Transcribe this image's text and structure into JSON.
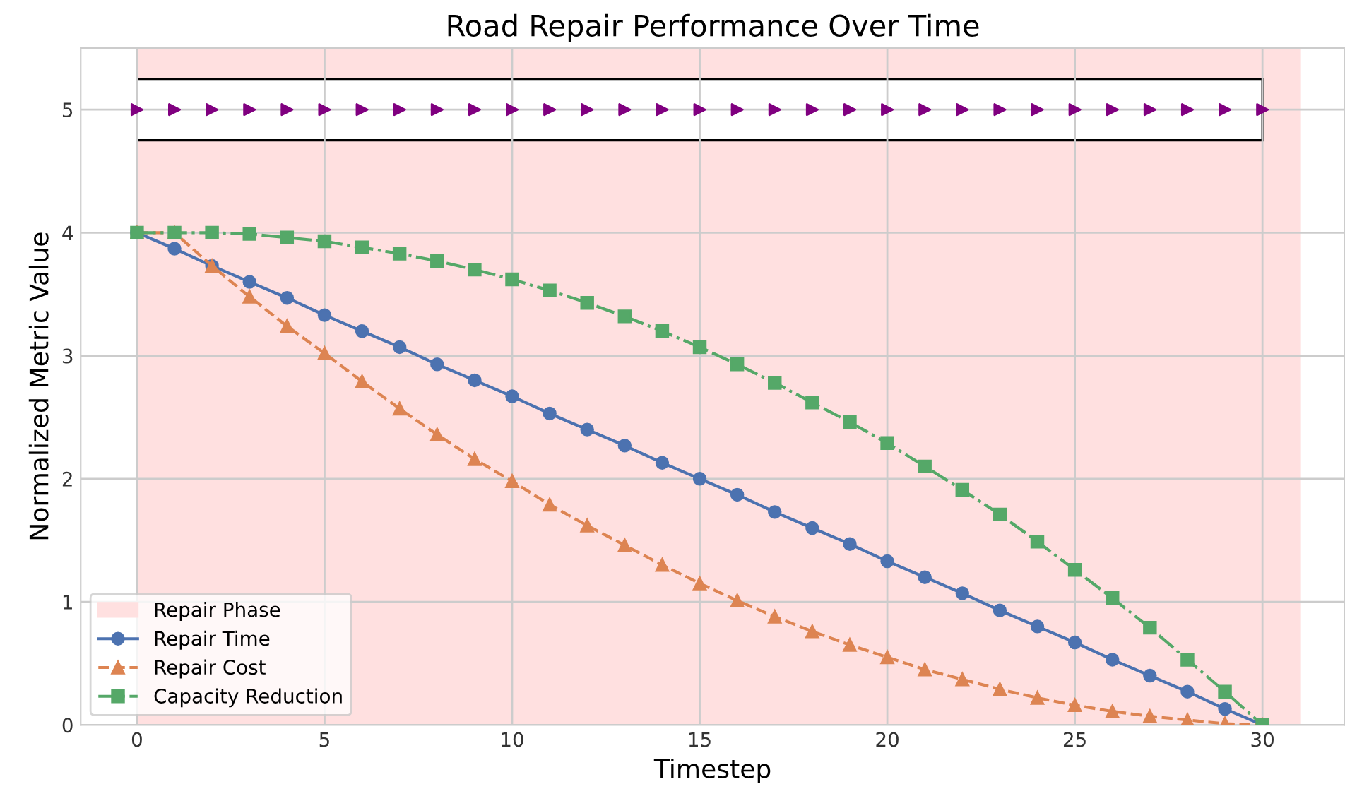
{
  "chart_data": {
    "type": "line",
    "title": "Road Repair Performance Over Time",
    "xlabel": "Timestep",
    "ylabel": "Normalized Metric Value",
    "x": [
      0,
      1,
      2,
      3,
      4,
      5,
      6,
      7,
      8,
      9,
      10,
      11,
      12,
      13,
      14,
      15,
      16,
      17,
      18,
      19,
      20,
      21,
      22,
      23,
      24,
      25,
      26,
      27,
      28,
      29,
      30
    ],
    "series": [
      {
        "name": "Repair Time",
        "color": "#4c72b0",
        "marker": "circle",
        "line_style": "solid",
        "values": [
          4.0,
          3.87,
          3.73,
          3.6,
          3.47,
          3.33,
          3.2,
          3.07,
          2.93,
          2.8,
          2.67,
          2.53,
          2.4,
          2.27,
          2.13,
          2.0,
          1.87,
          1.73,
          1.6,
          1.47,
          1.33,
          1.2,
          1.07,
          0.93,
          0.8,
          0.67,
          0.53,
          0.4,
          0.27,
          0.13,
          0.0
        ]
      },
      {
        "name": "Repair Cost",
        "color": "#dd8452",
        "marker": "triangle",
        "line_style": "dashed",
        "values": [
          4.0,
          4.0,
          3.73,
          3.48,
          3.24,
          3.02,
          2.79,
          2.57,
          2.36,
          2.16,
          1.98,
          1.79,
          1.62,
          1.46,
          1.3,
          1.15,
          1.01,
          0.88,
          0.76,
          0.65,
          0.55,
          0.45,
          0.37,
          0.29,
          0.22,
          0.16,
          0.11,
          0.07,
          0.04,
          0.01,
          0.0
        ]
      },
      {
        "name": "Capacity Reduction",
        "color": "#55a868",
        "marker": "square",
        "line_style": "dashdot",
        "values": [
          4.0,
          4.0,
          4.0,
          3.99,
          3.96,
          3.93,
          3.88,
          3.83,
          3.77,
          3.7,
          3.62,
          3.53,
          3.43,
          3.32,
          3.2,
          3.07,
          2.93,
          2.78,
          2.62,
          2.46,
          2.29,
          2.1,
          1.91,
          1.71,
          1.49,
          1.26,
          1.03,
          0.79,
          0.53,
          0.27,
          0.0
        ]
      },
      {
        "type": "scatter",
        "color": "#800080",
        "marker": "triangle-right",
        "values": [
          5,
          5,
          5,
          5,
          5,
          5,
          5,
          5,
          5,
          5,
          5,
          5,
          5,
          5,
          5,
          5,
          5,
          5,
          5,
          5,
          5,
          5,
          5,
          5,
          5,
          5,
          5,
          5,
          5,
          5,
          5
        ]
      }
    ],
    "bands": [
      {
        "axis": "x",
        "from": 0,
        "to": 31,
        "label": "Repair Phase",
        "color": "#ffe0e0"
      },
      {
        "axis": "y",
        "from": 4.75,
        "to": 5.25,
        "color": "#ffffff"
      }
    ],
    "xlim": [
      -1.5,
      32.2
    ],
    "ylim": [
      0,
      5.5
    ],
    "xticks": [
      0,
      5,
      10,
      15,
      20,
      25,
      30
    ],
    "yticks": [
      0,
      1,
      2,
      3,
      4,
      5
    ],
    "grid": true,
    "legend": "bottom left"
  }
}
